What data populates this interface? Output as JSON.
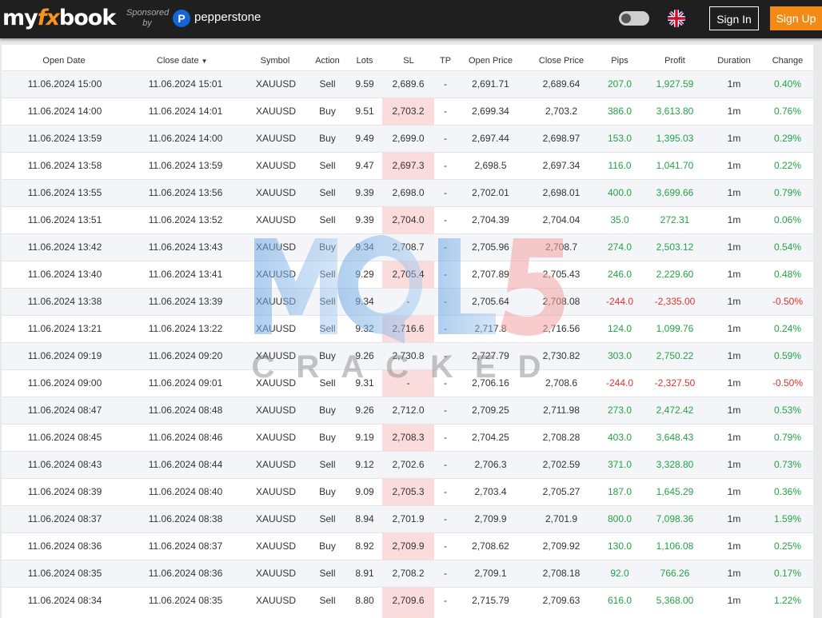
{
  "header": {
    "logo": {
      "my": "my",
      "fx": "fx",
      "book": "book"
    },
    "sponsored_line1": "Sponsored",
    "sponsored_line2": "by",
    "sponsor_icon": "P",
    "sponsor_name": "pepperstone",
    "theme_toggle_icon": "toggle-switch",
    "language_icon": "uk-flag",
    "signin_label": "Sign In",
    "signup_label": "Sign Up",
    "colors": {
      "bar": "#1f1f1f",
      "accent": "#f28a16",
      "sponsor": "#1565d8"
    }
  },
  "columns": [
    "Open Date",
    "Close date",
    "Symbol",
    "Action",
    "Lots",
    "SL",
    "TP",
    "Open Price",
    "Close Price",
    "Pips",
    "Profit",
    "Duration",
    "Change"
  ],
  "sort_indicator": "▼",
  "colors": {
    "positive": "#23a345",
    "negative": "#e0322a",
    "sl_highlight": "#fbdcdc"
  },
  "watermark": {
    "text": "MQL5",
    "subtext": "CRACKED"
  },
  "rows": [
    {
      "open_date": "11.06.2024 15:00",
      "close_date": "11.06.2024 15:01",
      "symbol": "XAUUSD",
      "action": "Sell",
      "lots": "9.59",
      "sl": "2,689.6",
      "tp": "-",
      "open_price": "2,691.71",
      "close_price": "2,689.64",
      "pips": "207.0",
      "profit": "1,927.59",
      "duration": "1m",
      "change": "0.40%"
    },
    {
      "open_date": "11.06.2024 14:00",
      "close_date": "11.06.2024 14:01",
      "symbol": "XAUUSD",
      "action": "Buy",
      "lots": "9.51",
      "sl": "2,703.2",
      "tp": "-",
      "open_price": "2,699.34",
      "close_price": "2,703.2",
      "pips": "386.0",
      "profit": "3,613.80",
      "duration": "1m",
      "change": "0.76%"
    },
    {
      "open_date": "11.06.2024 13:59",
      "close_date": "11.06.2024 14:00",
      "symbol": "XAUUSD",
      "action": "Buy",
      "lots": "9.49",
      "sl": "2,699.0",
      "tp": "-",
      "open_price": "2,697.44",
      "close_price": "2,698.97",
      "pips": "153.0",
      "profit": "1,395.03",
      "duration": "1m",
      "change": "0.29%"
    },
    {
      "open_date": "11.06.2024 13:58",
      "close_date": "11.06.2024 13:59",
      "symbol": "XAUUSD",
      "action": "Sell",
      "lots": "9.47",
      "sl": "2,697.3",
      "tp": "-",
      "open_price": "2,698.5",
      "close_price": "2,697.34",
      "pips": "116.0",
      "profit": "1,041.70",
      "duration": "1m",
      "change": "0.22%"
    },
    {
      "open_date": "11.06.2024 13:55",
      "close_date": "11.06.2024 13:56",
      "symbol": "XAUUSD",
      "action": "Sell",
      "lots": "9.39",
      "sl": "2,698.0",
      "tp": "-",
      "open_price": "2,702.01",
      "close_price": "2,698.01",
      "pips": "400.0",
      "profit": "3,699.66",
      "duration": "1m",
      "change": "0.79%"
    },
    {
      "open_date": "11.06.2024 13:51",
      "close_date": "11.06.2024 13:52",
      "symbol": "XAUUSD",
      "action": "Sell",
      "lots": "9.39",
      "sl": "2,704.0",
      "tp": "-",
      "open_price": "2,704.39",
      "close_price": "2,704.04",
      "pips": "35.0",
      "profit": "272.31",
      "duration": "1m",
      "change": "0.06%"
    },
    {
      "open_date": "11.06.2024 13:42",
      "close_date": "11.06.2024 13:43",
      "symbol": "XAUUSD",
      "action": "Buy",
      "lots": "9.34",
      "sl": "2,708.7",
      "tp": "-",
      "open_price": "2,705.96",
      "close_price": "2,708.7",
      "pips": "274.0",
      "profit": "2,503.12",
      "duration": "1m",
      "change": "0.54%"
    },
    {
      "open_date": "11.06.2024 13:40",
      "close_date": "11.06.2024 13:41",
      "symbol": "XAUUSD",
      "action": "Sell",
      "lots": "9.29",
      "sl": "2,705.4",
      "tp": "-",
      "open_price": "2,707.89",
      "close_price": "2,705.43",
      "pips": "246.0",
      "profit": "2,229.60",
      "duration": "1m",
      "change": "0.48%"
    },
    {
      "open_date": "11.06.2024 13:38",
      "close_date": "11.06.2024 13:39",
      "symbol": "XAUUSD",
      "action": "Sell",
      "lots": "9.34",
      "sl": "-",
      "tp": "-",
      "open_price": "2,705.64",
      "close_price": "2,708.08",
      "pips": "-244.0",
      "profit": "-2,335.00",
      "duration": "1m",
      "change": "-0.50%"
    },
    {
      "open_date": "11.06.2024 13:21",
      "close_date": "11.06.2024 13:22",
      "symbol": "XAUUSD",
      "action": "Sell",
      "lots": "9.32",
      "sl": "2,716.6",
      "tp": "-",
      "open_price": "2,717.8",
      "close_price": "2,716.56",
      "pips": "124.0",
      "profit": "1,099.76",
      "duration": "1m",
      "change": "0.24%"
    },
    {
      "open_date": "11.06.2024 09:19",
      "close_date": "11.06.2024 09:20",
      "symbol": "XAUUSD",
      "action": "Buy",
      "lots": "9.26",
      "sl": "2,730.8",
      "tp": "-",
      "open_price": "2,727.79",
      "close_price": "2,730.82",
      "pips": "303.0",
      "profit": "2,750.22",
      "duration": "1m",
      "change": "0.59%"
    },
    {
      "open_date": "11.06.2024 09:00",
      "close_date": "11.06.2024 09:01",
      "symbol": "XAUUSD",
      "action": "Sell",
      "lots": "9.31",
      "sl": "-",
      "tp": "-",
      "open_price": "2,706.16",
      "close_price": "2,708.6",
      "pips": "-244.0",
      "profit": "-2,327.50",
      "duration": "1m",
      "change": "-0.50%"
    },
    {
      "open_date": "11.06.2024 08:47",
      "close_date": "11.06.2024 08:48",
      "symbol": "XAUUSD",
      "action": "Buy",
      "lots": "9.26",
      "sl": "2,712.0",
      "tp": "-",
      "open_price": "2,709.25",
      "close_price": "2,711.98",
      "pips": "273.0",
      "profit": "2,472.42",
      "duration": "1m",
      "change": "0.53%"
    },
    {
      "open_date": "11.06.2024 08:45",
      "close_date": "11.06.2024 08:46",
      "symbol": "XAUUSD",
      "action": "Buy",
      "lots": "9.19",
      "sl": "2,708.3",
      "tp": "-",
      "open_price": "2,704.25",
      "close_price": "2,708.28",
      "pips": "403.0",
      "profit": "3,648.43",
      "duration": "1m",
      "change": "0.79%"
    },
    {
      "open_date": "11.06.2024 08:43",
      "close_date": "11.06.2024 08:44",
      "symbol": "XAUUSD",
      "action": "Sell",
      "lots": "9.12",
      "sl": "2,702.6",
      "tp": "-",
      "open_price": "2,706.3",
      "close_price": "2,702.59",
      "pips": "371.0",
      "profit": "3,328.80",
      "duration": "1m",
      "change": "0.73%"
    },
    {
      "open_date": "11.06.2024 08:39",
      "close_date": "11.06.2024 08:40",
      "symbol": "XAUUSD",
      "action": "Buy",
      "lots": "9.09",
      "sl": "2,705.3",
      "tp": "-",
      "open_price": "2,703.4",
      "close_price": "2,705.27",
      "pips": "187.0",
      "profit": "1,645.29",
      "duration": "1m",
      "change": "0.36%"
    },
    {
      "open_date": "11.06.2024 08:37",
      "close_date": "11.06.2024 08:38",
      "symbol": "XAUUSD",
      "action": "Sell",
      "lots": "8.94",
      "sl": "2,701.9",
      "tp": "-",
      "open_price": "2,709.9",
      "close_price": "2,701.9",
      "pips": "800.0",
      "profit": "7,098.36",
      "duration": "1m",
      "change": "1.59%"
    },
    {
      "open_date": "11.06.2024 08:36",
      "close_date": "11.06.2024 08:37",
      "symbol": "XAUUSD",
      "action": "Buy",
      "lots": "8.92",
      "sl": "2,709.9",
      "tp": "-",
      "open_price": "2,708.62",
      "close_price": "2,709.92",
      "pips": "130.0",
      "profit": "1,106.08",
      "duration": "1m",
      "change": "0.25%"
    },
    {
      "open_date": "11.06.2024 08:35",
      "close_date": "11.06.2024 08:36",
      "symbol": "XAUUSD",
      "action": "Sell",
      "lots": "8.91",
      "sl": "2,708.2",
      "tp": "-",
      "open_price": "2,709.1",
      "close_price": "2,708.18",
      "pips": "92.0",
      "profit": "766.26",
      "duration": "1m",
      "change": "0.17%"
    },
    {
      "open_date": "11.06.2024 08:34",
      "close_date": "11.06.2024 08:35",
      "symbol": "XAUUSD",
      "action": "Sell",
      "lots": "8.80",
      "sl": "2,709.6",
      "tp": "-",
      "open_price": "2,715.79",
      "close_price": "2,709.63",
      "pips": "616.0",
      "profit": "5,368.00",
      "duration": "1m",
      "change": "1.22%"
    }
  ]
}
